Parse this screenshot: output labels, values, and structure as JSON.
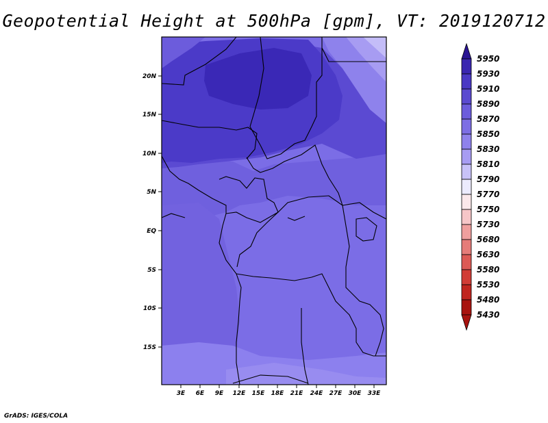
{
  "title": "Geopotential Height at 500hPa [gpm], VT: 2019120712",
  "credit": "GrADS: IGES/COLA",
  "axes": {
    "x_ticks": [
      "3E",
      "6E",
      "9E",
      "12E",
      "15E",
      "18E",
      "21E",
      "24E",
      "27E",
      "30E",
      "33E"
    ],
    "y_ticks": [
      "20N",
      "15N",
      "10N",
      "5N",
      "EQ",
      "5S",
      "10S",
      "15S"
    ]
  },
  "colorbar": {
    "levels": [
      "5950",
      "5930",
      "5910",
      "5890",
      "5870",
      "5850",
      "5830",
      "5810",
      "5790",
      "5770",
      "5750",
      "5730",
      "5680",
      "5630",
      "5580",
      "5530",
      "5480",
      "5430"
    ],
    "colors": [
      "#2a1494",
      "#3a26b0",
      "#4a38c4",
      "#5b4ad0",
      "#6c5cdc",
      "#7d6ee4",
      "#8f82ec",
      "#a79cf2",
      "#c8c2f8",
      "#ecebfd",
      "#fbe8ea",
      "#f6c6c8",
      "#ef9f9e",
      "#e57c79",
      "#dc5a55",
      "#d13c36",
      "#c0251f",
      "#a8130f"
    ],
    "tip_top": "#2a1494",
    "tip_bottom": "#a8130f"
  }
}
